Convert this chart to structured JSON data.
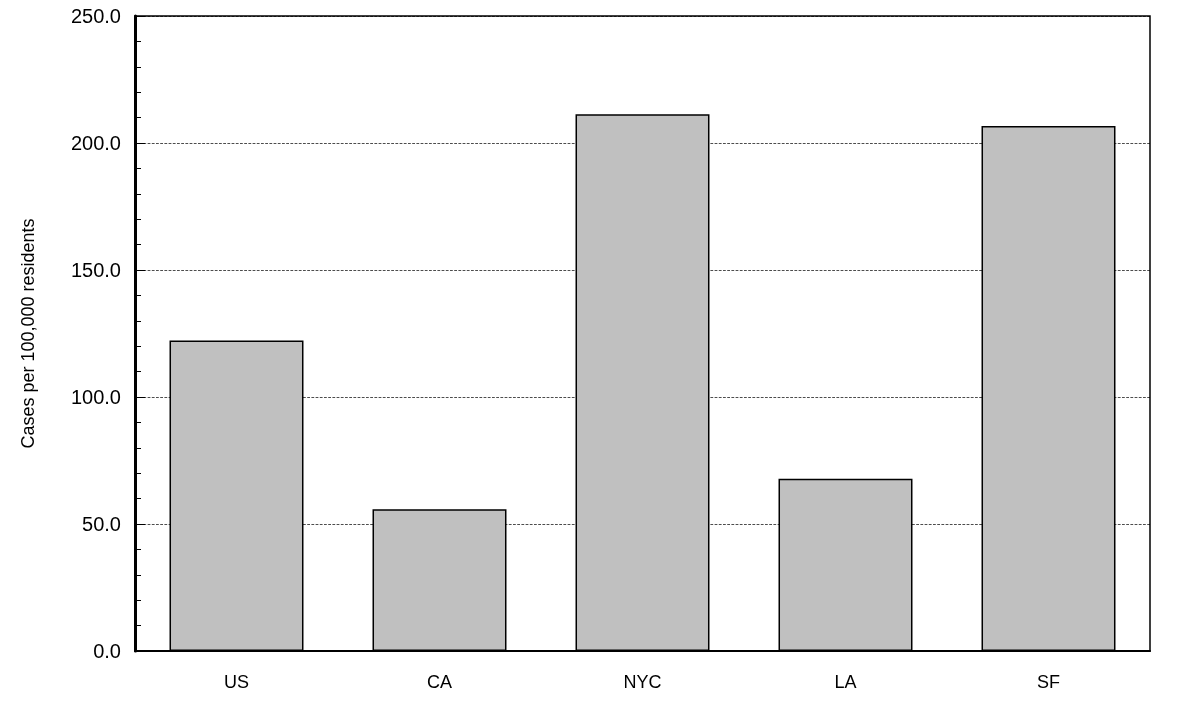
{
  "chart_data": {
    "type": "bar",
    "ylabel": "Cases per 100,000 residents",
    "categories": [
      "US",
      "CA",
      "NYC",
      "LA",
      "SF"
    ],
    "values": [
      122.2,
      55.8,
      211.3,
      67.8,
      206.7
    ],
    "color": "#c0c0c0",
    "ylim": [
      0,
      250
    ],
    "yticks": [
      {
        "value": 0,
        "label": "0.0"
      },
      {
        "value": 50,
        "label": "50.0"
      },
      {
        "value": 100,
        "label": "100.0"
      },
      {
        "value": 150,
        "label": "150.0"
      },
      {
        "value": 200,
        "label": "200.0"
      },
      {
        "value": 250,
        "label": "250.0"
      }
    ],
    "grid": "y",
    "line_style": "dashed"
  }
}
